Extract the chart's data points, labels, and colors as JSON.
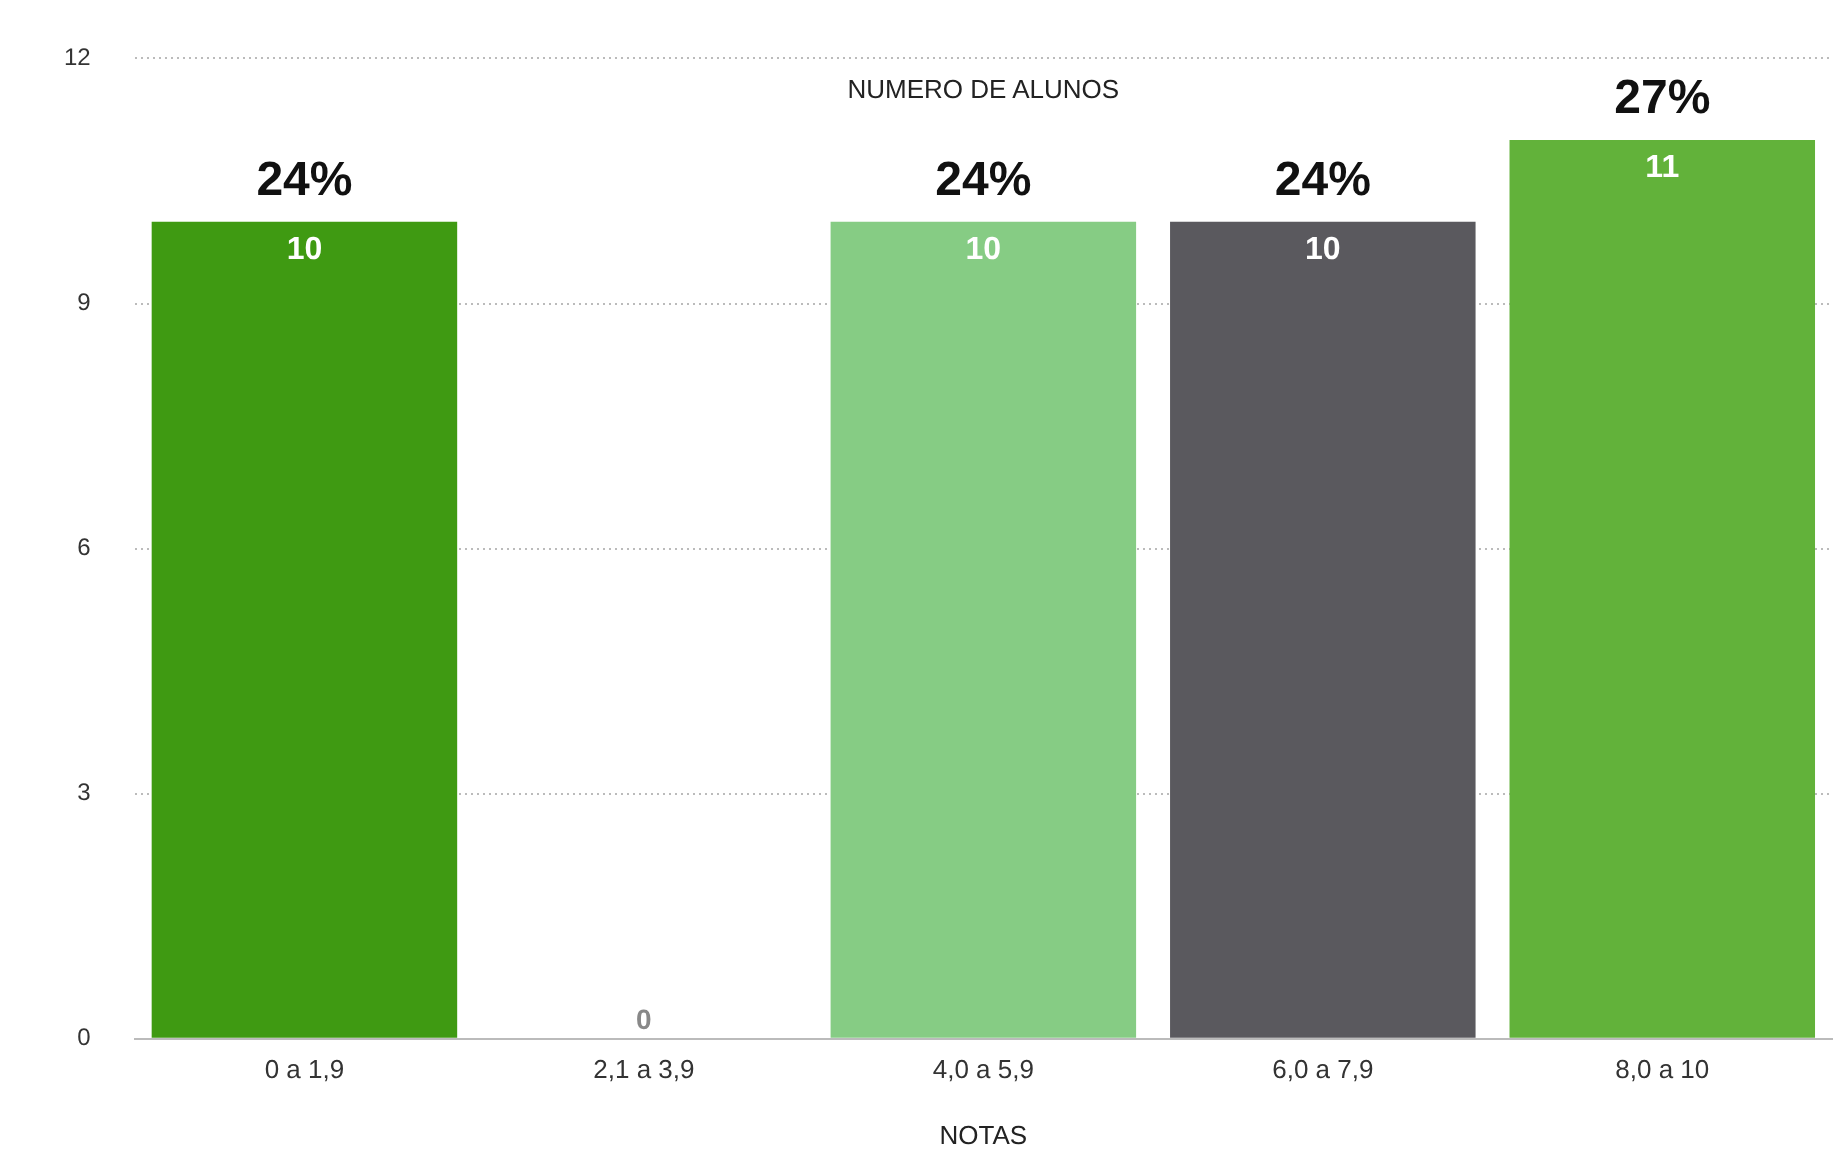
{
  "chart_data": {
    "type": "bar",
    "title": "NUMERO DE ALUNOS",
    "xlabel": "NOTAS",
    "categories": [
      "0 a 1,9",
      "2,1 a 3,9",
      "4,0 a 5,9",
      "6,0 a 7,9",
      "8,0 a 10"
    ],
    "values": [
      10,
      0,
      10,
      10,
      11
    ],
    "colors": [
      "#3f9a12",
      "#b0b0b0",
      "#86cc84",
      "#5a595e",
      "#62b23a"
    ],
    "ylim": [
      0,
      12
    ],
    "yticks": [
      0,
      3,
      6,
      9,
      12
    ],
    "grid": "y",
    "data_labels": true,
    "annotations": [
      {
        "text": "24%",
        "x": "0 a 1,9",
        "y": 10
      },
      {
        "text": "24%",
        "x": "4,0 a 5,9",
        "y": 10
      },
      {
        "text": "24%",
        "x": "6,0 a 7,9",
        "y": 10
      },
      {
        "text": "27%",
        "x": "8,0 a 10",
        "y": 11
      }
    ]
  }
}
